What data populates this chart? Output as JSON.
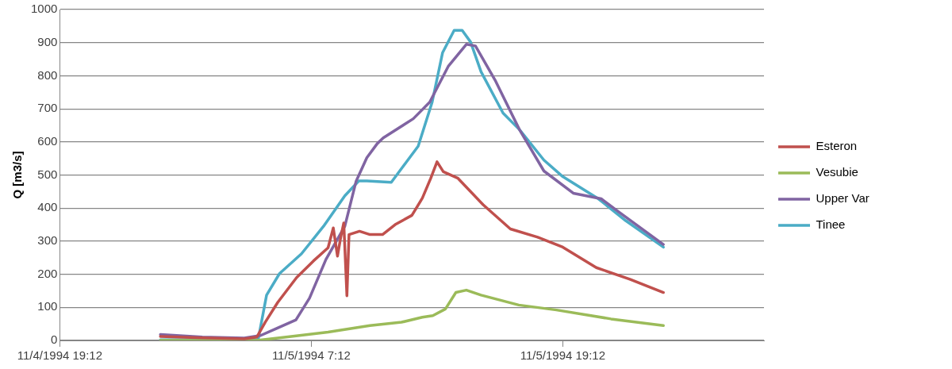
{
  "chart_data": {
    "type": "line",
    "ylabel": "Q [m3/s]",
    "xlim": [
      "1994-11-04T19:12",
      "1994-11-06T04:48"
    ],
    "xticks": [
      {
        "value": "1994-11-04T19:12",
        "label": "11/4/1994 19:12"
      },
      {
        "value": "1994-11-05T07:12",
        "label": "11/5/1994 7:12"
      },
      {
        "value": "1994-11-05T19:12",
        "label": "11/5/1994 19:12"
      }
    ],
    "ylim": [
      0,
      1000
    ],
    "yticks": [
      0,
      100,
      200,
      300,
      400,
      500,
      600,
      700,
      800,
      900,
      1000
    ],
    "grid": "y",
    "legend": "right",
    "marker": "none",
    "line_style": "solid",
    "series": [
      {
        "name": "Esteron",
        "color": "#c0504d",
        "x": [
          "1994-11-05T00:00",
          "1994-11-05T02:00",
          "1994-11-05T04:00",
          "1994-11-05T04:36",
          "1994-11-05T05:00",
          "1994-11-05T05:36",
          "1994-11-05T06:30",
          "1994-11-05T07:18",
          "1994-11-05T08:00",
          "1994-11-05T08:15",
          "1994-11-05T08:27",
          "1994-11-05T08:36",
          "1994-11-05T08:45",
          "1994-11-05T08:54",
          "1994-11-05T09:00",
          "1994-11-05T09:30",
          "1994-11-05T10:00",
          "1994-11-05T10:36",
          "1994-11-05T11:12",
          "1994-11-05T12:00",
          "1994-11-05T12:30",
          "1994-11-05T12:54",
          "1994-11-05T13:12",
          "1994-11-05T13:30",
          "1994-11-05T14:12",
          "1994-11-05T15:24",
          "1994-11-05T16:42",
          "1994-11-05T18:00",
          "1994-11-05T19:12",
          "1994-11-05T20:48",
          "1994-11-05T22:24",
          "1994-11-06T00:00"
        ],
        "values": [
          12,
          8,
          5,
          10,
          55,
          115,
          190,
          240,
          280,
          340,
          255,
          310,
          355,
          135,
          320,
          330,
          320,
          320,
          350,
          378,
          430,
          490,
          540,
          510,
          490,
          410,
          337,
          312,
          282,
          220,
          185,
          145
        ]
      },
      {
        "name": "Vesubie",
        "color": "#9bbb59",
        "x": [
          "1994-11-05T00:00",
          "1994-11-05T04:36",
          "1994-11-05T06:00",
          "1994-11-05T08:00",
          "1994-11-05T10:00",
          "1994-11-05T11:30",
          "1994-11-05T12:30",
          "1994-11-05T13:00",
          "1994-11-05T13:36",
          "1994-11-05T14:06",
          "1994-11-05T14:36",
          "1994-11-05T15:18",
          "1994-11-05T17:06",
          "1994-11-05T18:54",
          "1994-11-05T21:30",
          "1994-11-06T00:00"
        ],
        "values": [
          0,
          0,
          10,
          25,
          45,
          55,
          70,
          75,
          95,
          145,
          152,
          137,
          107,
          92,
          65,
          45
        ]
      },
      {
        "name": "Upper Var",
        "color": "#8064a2",
        "x": [
          "1994-11-05T00:00",
          "1994-11-05T02:00",
          "1994-11-05T04:00",
          "1994-11-05T04:47",
          "1994-11-05T05:34",
          "1994-11-05T06:28",
          "1994-11-05T07:07",
          "1994-11-05T07:54",
          "1994-11-05T08:48",
          "1994-11-05T09:20",
          "1994-11-05T09:51",
          "1994-11-05T10:21",
          "1994-11-05T10:38",
          "1994-11-05T12:04",
          "1994-11-05T12:51",
          "1994-11-05T13:44",
          "1994-11-05T14:36",
          "1994-11-05T15:02",
          "1994-11-05T15:58",
          "1994-11-05T17:08",
          "1994-11-05T18:18",
          "1994-11-05T19:42",
          "1994-11-05T21:02",
          "1994-11-05T21:54",
          "1994-11-06T00:00"
        ],
        "values": [
          18,
          10,
          7,
          15,
          37,
          62,
          128,
          245,
          345,
          480,
          552,
          595,
          612,
          670,
          720,
          828,
          895,
          890,
          787,
          637,
          512,
          445,
          428,
          387,
          290
        ]
      },
      {
        "name": "Tinee",
        "color": "#4bacc6",
        "x": [
          "1994-11-05T00:00",
          "1994-11-05T04:40",
          "1994-11-05T05:04",
          "1994-11-05T05:41",
          "1994-11-05T06:44",
          "1994-11-05T07:47",
          "1994-11-05T08:48",
          "1994-11-05T09:28",
          "1994-11-05T09:51",
          "1994-11-05T11:01",
          "1994-11-05T12:18",
          "1994-11-05T12:58",
          "1994-11-05T13:28",
          "1994-11-05T14:01",
          "1994-11-05T14:24",
          "1994-11-05T14:48",
          "1994-11-05T15:18",
          "1994-11-05T16:21",
          "1994-11-05T17:08",
          "1994-11-05T18:18",
          "1994-11-05T19:12",
          "1994-11-05T20:54",
          "1994-11-05T22:12",
          "1994-11-06T00:00"
        ],
        "values": [
          2,
          3,
          137,
          202,
          262,
          345,
          437,
          482,
          482,
          478,
          587,
          720,
          870,
          937,
          937,
          902,
          812,
          687,
          637,
          545,
          495,
          428,
          362,
          282
        ]
      }
    ]
  }
}
